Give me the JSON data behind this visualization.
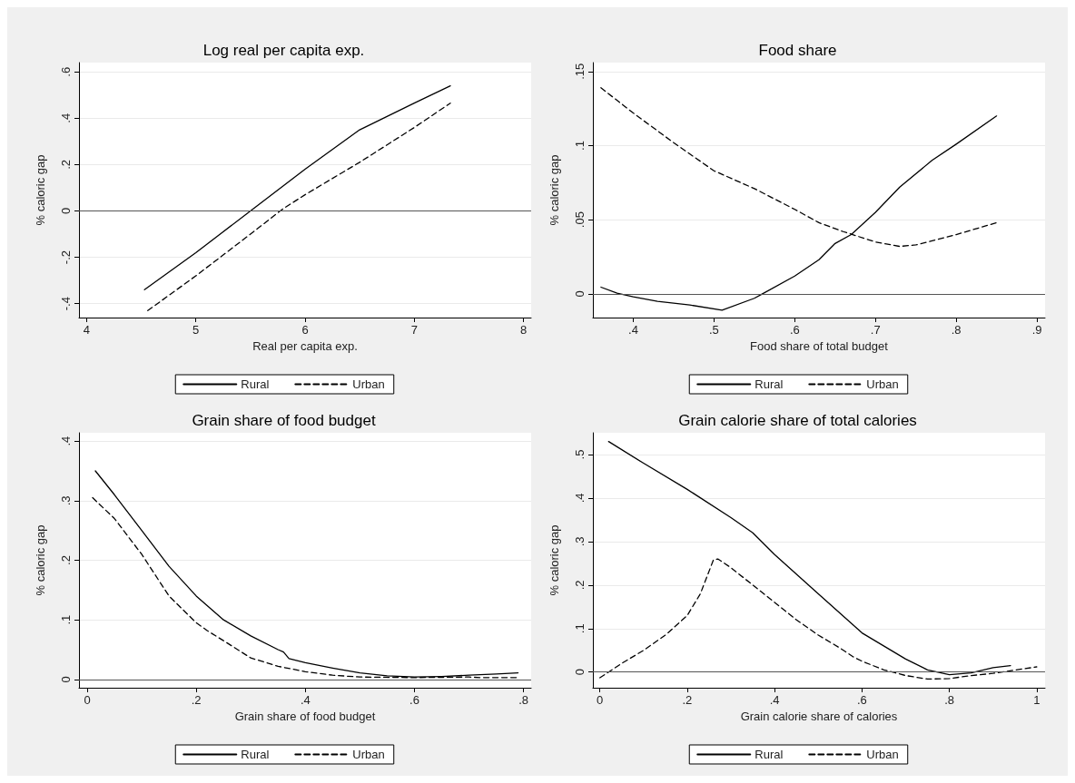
{
  "chart_data": [
    {
      "type": "line",
      "title": "Log real per capita exp.",
      "xlabel": "Real per capita exp.",
      "ylabel": "% caloric gap",
      "xlim": [
        3.93,
        8.07
      ],
      "xticks": [
        4,
        5,
        6,
        7,
        8
      ],
      "ylim": [
        -0.46,
        0.64
      ],
      "yticks": [
        {
          "value": -0.4,
          "label": "-.4"
        },
        {
          "value": -0.2,
          "label": "-.2"
        },
        {
          "value": 0,
          "label": "0"
        },
        {
          "value": 0.2,
          "label": ".2"
        },
        {
          "value": 0.4,
          "label": ".4"
        },
        {
          "value": 0.6,
          "label": ".6"
        }
      ],
      "grid": "y",
      "legend": "bottom",
      "marker": "none",
      "ref_lines": [
        {
          "axis": "y",
          "value": 0,
          "color": "#555555"
        }
      ],
      "series": [
        {
          "name": "Rural",
          "color": "#000000",
          "line_style": "solid",
          "x": [
            4.53,
            5,
            5.5,
            6,
            6.5,
            7,
            7.33
          ],
          "values": [
            -0.34,
            -0.18,
            0,
            0.18,
            0.35,
            0.465,
            0.54
          ]
        },
        {
          "name": "Urban",
          "color": "#000000",
          "line_style": "dashed",
          "x": [
            4.56,
            5,
            5.5,
            5.8,
            6,
            6.5,
            7,
            7.33
          ],
          "values": [
            -0.43,
            -0.28,
            -0.1,
            0.01,
            0.07,
            0.21,
            0.36,
            0.465
          ]
        }
      ]
    },
    {
      "type": "line",
      "title": "Food share",
      "xlabel": "Food share of total budget",
      "ylabel": "% caloric gap",
      "xlim": [
        0.35,
        0.91
      ],
      "xticks": [
        {
          "value": 0.4,
          "label": ".4"
        },
        {
          "value": 0.5,
          "label": ".5"
        },
        {
          "value": 0.6,
          "label": ".6"
        },
        {
          "value": 0.7,
          "label": ".7"
        },
        {
          "value": 0.8,
          "label": ".8"
        },
        {
          "value": 0.9,
          "label": ".9"
        }
      ],
      "ylim": [
        -0.016,
        0.156
      ],
      "yticks": [
        {
          "value": 0,
          "label": "0"
        },
        {
          "value": 0.05,
          "label": ".05"
        },
        {
          "value": 0.1,
          "label": ".1"
        },
        {
          "value": 0.15,
          "label": ".15"
        }
      ],
      "grid": "y",
      "legend": "bottom",
      "marker": "none",
      "ref_lines": [
        {
          "axis": "y",
          "value": 0,
          "color": "#555555"
        }
      ],
      "series": [
        {
          "name": "Rural",
          "color": "#000000",
          "line_style": "solid",
          "x": [
            0.36,
            0.38,
            0.4,
            0.43,
            0.47,
            0.51,
            0.55,
            0.56,
            0.6,
            0.63,
            0.65,
            0.67,
            0.7,
            0.73,
            0.77,
            0.8,
            0.85
          ],
          "values": [
            0.0045,
            0.0005,
            -0.002,
            -0.005,
            -0.0075,
            -0.011,
            -0.003,
            0,
            0.012,
            0.023,
            0.034,
            0.04,
            0.055,
            0.072,
            0.09,
            0.101,
            0.12
          ]
        },
        {
          "name": "Urban",
          "color": "#000000",
          "line_style": "dashed",
          "x": [
            0.36,
            0.4,
            0.45,
            0.5,
            0.55,
            0.6,
            0.63,
            0.66,
            0.7,
            0.73,
            0.75,
            0.8,
            0.85
          ],
          "values": [
            0.139,
            0.122,
            0.102,
            0.083,
            0.071,
            0.057,
            0.048,
            0.042,
            0.035,
            0.032,
            0.033,
            0.04,
            0.048
          ]
        }
      ]
    },
    {
      "type": "line",
      "title": "Grain share of food budget",
      "xlabel": "Grain share of food budget",
      "ylabel": "% caloric gap",
      "xlim": [
        -0.015,
        0.814
      ],
      "xticks": [
        0,
        {
          "value": 0.2,
          "label": ".2"
        },
        {
          "value": 0.4,
          "label": ".4"
        },
        {
          "value": 0.6,
          "label": ".6"
        },
        {
          "value": 0.8,
          "label": ".8"
        }
      ],
      "ylim": [
        -0.014,
        0.414
      ],
      "yticks": [
        {
          "value": 0,
          "label": "0"
        },
        {
          "value": 0.1,
          "label": ".1"
        },
        {
          "value": 0.2,
          "label": ".2"
        },
        {
          "value": 0.3,
          "label": ".3"
        },
        {
          "value": 0.4,
          "label": ".4"
        }
      ],
      "grid": "y",
      "legend": "bottom",
      "marker": "none",
      "ref_lines": [
        {
          "axis": "y",
          "value": 0,
          "color": "#555555"
        }
      ],
      "series": [
        {
          "name": "Rural",
          "color": "#000000",
          "line_style": "solid",
          "x": [
            0.015,
            0.05,
            0.1,
            0.15,
            0.2,
            0.25,
            0.3,
            0.35,
            0.36,
            0.37,
            0.4,
            0.45,
            0.5,
            0.55,
            0.6,
            0.65,
            0.7,
            0.75,
            0.79
          ],
          "values": [
            0.35,
            0.31,
            0.25,
            0.19,
            0.14,
            0.1,
            0.073,
            0.05,
            0.046,
            0.035,
            0.028,
            0.019,
            0.011,
            0.006,
            0.004,
            0.005,
            0.007,
            0.009,
            0.011
          ]
        },
        {
          "name": "Urban",
          "color": "#000000",
          "line_style": "dashed",
          "x": [
            0.01,
            0.05,
            0.1,
            0.15,
            0.2,
            0.22,
            0.25,
            0.3,
            0.35,
            0.4,
            0.45,
            0.5,
            0.6,
            0.7,
            0.72,
            0.79
          ],
          "values": [
            0.305,
            0.27,
            0.21,
            0.14,
            0.095,
            0.082,
            0.065,
            0.036,
            0.022,
            0.013,
            0.007,
            0.004,
            0.003,
            0.004,
            0.003,
            0.003
          ]
        }
      ]
    },
    {
      "type": "line",
      "title": "Grain calorie share of total calories",
      "xlabel": "Grain calorie share of calories",
      "ylabel": "% caloric gap",
      "xlim": [
        -0.016,
        1.019
      ],
      "xticks": [
        0,
        {
          "value": 0.2,
          "label": ".2"
        },
        {
          "value": 0.4,
          "label": ".4"
        },
        {
          "value": 0.6,
          "label": ".6"
        },
        {
          "value": 0.8,
          "label": ".8"
        },
        1
      ],
      "ylim": [
        -0.036,
        0.55
      ],
      "yticks": [
        {
          "value": 0,
          "label": "0"
        },
        {
          "value": 0.1,
          "label": ".1"
        },
        {
          "value": 0.2,
          "label": ".2"
        },
        {
          "value": 0.3,
          "label": ".3"
        },
        {
          "value": 0.4,
          "label": ".4"
        },
        {
          "value": 0.5,
          "label": ".5"
        }
      ],
      "grid": "y",
      "legend": "bottom",
      "marker": "none",
      "ref_lines": [
        {
          "axis": "y",
          "value": 0,
          "color": "#555555"
        }
      ],
      "series": [
        {
          "name": "Rural",
          "color": "#000000",
          "line_style": "solid",
          "x": [
            0.02,
            0.1,
            0.2,
            0.3,
            0.35,
            0.4,
            0.5,
            0.6,
            0.7,
            0.75,
            0.8,
            0.85,
            0.9,
            0.94
          ],
          "values": [
            0.53,
            0.48,
            0.42,
            0.355,
            0.32,
            0.27,
            0.18,
            0.09,
            0.03,
            0.005,
            -0.006,
            -0.002,
            0.01,
            0.015
          ]
        },
        {
          "name": "Urban",
          "color": "#000000",
          "line_style": "dashed",
          "x": [
            0,
            0.02,
            0.05,
            0.1,
            0.15,
            0.2,
            0.23,
            0.26,
            0.27,
            0.3,
            0.35,
            0.4,
            0.45,
            0.5,
            0.55,
            0.58,
            0.6,
            0.65,
            0.7,
            0.75,
            0.8,
            0.85,
            0.9,
            1.0
          ],
          "values": [
            -0.013,
            0,
            0.02,
            0.05,
            0.085,
            0.13,
            0.18,
            0.258,
            0.26,
            0.24,
            0.2,
            0.16,
            0.12,
            0.085,
            0.055,
            0.035,
            0.025,
            0.005,
            -0.008,
            -0.016,
            -0.015,
            -0.008,
            -0.003,
            0.012
          ]
        }
      ]
    }
  ]
}
